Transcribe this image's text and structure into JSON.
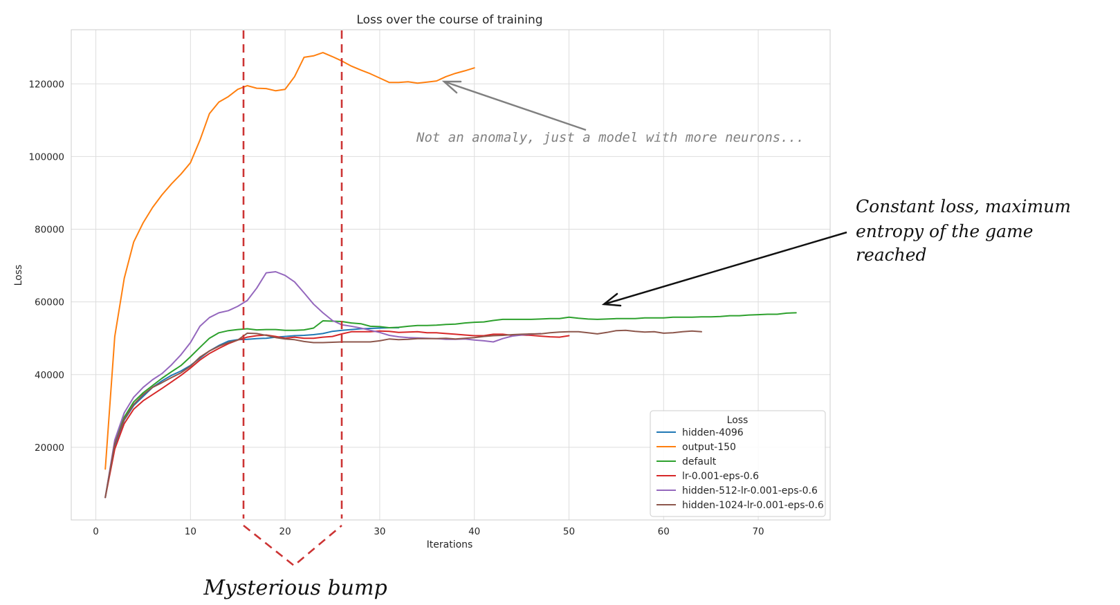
{
  "chart_data": {
    "type": "line",
    "title": "Loss over the course of training",
    "xlabel": "Iterations",
    "ylabel": "Loss",
    "xlim": [
      -2.6,
      77.6
    ],
    "ylim": [
      0,
      134900
    ],
    "xticks": [
      0,
      10,
      20,
      30,
      40,
      50,
      60,
      70
    ],
    "yticks": [
      20000,
      40000,
      60000,
      80000,
      100000,
      120000
    ],
    "grid": true,
    "legend": {
      "title": "Loss",
      "placement": "lower-right"
    },
    "series": [
      {
        "name": "hidden-4096",
        "color": "#1f77b4",
        "x": [
          1,
          2,
          3,
          4,
          5,
          6,
          7,
          8,
          9,
          10,
          11,
          12,
          13,
          14,
          15,
          16,
          17,
          18,
          19,
          20,
          21,
          22,
          23,
          24,
          25,
          26,
          27,
          28,
          29,
          30,
          31,
          32
        ],
        "y": [
          6200,
          20500,
          27500,
          31500,
          34000,
          36500,
          38300,
          39800,
          41000,
          42500,
          44500,
          46500,
          48000,
          49200,
          49600,
          49700,
          49900,
          50000,
          50300,
          50500,
          50700,
          50800,
          51000,
          51300,
          51900,
          52200,
          52400,
          52600,
          52700,
          52800,
          52900,
          52900
        ]
      },
      {
        "name": "output-150",
        "color": "#ff7f0e",
        "x": [
          1,
          2,
          3,
          4,
          5,
          6,
          7,
          8,
          9,
          10,
          11,
          12,
          13,
          14,
          15,
          16,
          17,
          18,
          19,
          20,
          21,
          22,
          23,
          24,
          25,
          26,
          27,
          28,
          29,
          30,
          31,
          32,
          33,
          34,
          35,
          36,
          37,
          38,
          39,
          40
        ],
        "y": [
          14000,
          50500,
          66500,
          76500,
          81800,
          86000,
          89500,
          92500,
          95200,
          98300,
          104500,
          111800,
          115000,
          116500,
          118500,
          119500,
          118800,
          118700,
          118100,
          118500,
          122000,
          127300,
          127700,
          128600,
          127500,
          126300,
          124900,
          123800,
          122800,
          121600,
          120400,
          120400,
          120600,
          120200,
          120500,
          120800,
          122000,
          122900,
          123600,
          124400
        ]
      },
      {
        "name": "default",
        "color": "#2ca02c",
        "x": [
          1,
          2,
          3,
          4,
          5,
          6,
          7,
          8,
          9,
          10,
          11,
          12,
          13,
          14,
          15,
          16,
          17,
          18,
          19,
          20,
          21,
          22,
          23,
          24,
          25,
          26,
          27,
          28,
          29,
          30,
          31,
          32,
          33,
          34,
          35,
          36,
          37,
          38,
          39,
          40,
          41,
          42,
          43,
          44,
          45,
          46,
          47,
          48,
          49,
          50,
          51,
          52,
          53,
          54,
          55,
          56,
          57,
          58,
          59,
          60,
          61,
          62,
          63,
          64,
          65,
          66,
          67,
          68,
          69,
          70,
          71,
          72,
          73,
          74
        ],
        "y": [
          6200,
          21500,
          28300,
          32500,
          35000,
          37000,
          39000,
          40800,
          42500,
          44900,
          47500,
          50000,
          51500,
          52100,
          52400,
          52600,
          52300,
          52400,
          52400,
          52200,
          52200,
          52300,
          52800,
          54800,
          54700,
          54600,
          54200,
          54000,
          53300,
          53200,
          52900,
          53000,
          53300,
          53500,
          53500,
          53600,
          53800,
          53900,
          54200,
          54400,
          54500,
          54900,
          55200,
          55200,
          55200,
          55200,
          55300,
          55400,
          55400,
          55800,
          55500,
          55300,
          55200,
          55300,
          55400,
          55400,
          55400,
          55600,
          55600,
          55600,
          55800,
          55800,
          55800,
          55900,
          55900,
          56000,
          56200,
          56200,
          56400,
          56500,
          56600,
          56600,
          56900,
          57000
        ]
      },
      {
        "name": "lr-0.001-eps-0.6",
        "color": "#d62728",
        "x": [
          1,
          2,
          3,
          4,
          5,
          6,
          7,
          8,
          9,
          10,
          11,
          12,
          13,
          14,
          15,
          16,
          17,
          18,
          19,
          20,
          21,
          22,
          23,
          24,
          25,
          26,
          27,
          28,
          29,
          30,
          31,
          32,
          33,
          34,
          35,
          36,
          37,
          38,
          39,
          40,
          41,
          42,
          43,
          44,
          45,
          46,
          47,
          48,
          49,
          50
        ],
        "y": [
          6200,
          19500,
          26500,
          30500,
          32800,
          34500,
          36200,
          38000,
          39800,
          41800,
          44000,
          45800,
          47200,
          48500,
          49500,
          50300,
          50700,
          50900,
          50500,
          50000,
          50300,
          50000,
          50000,
          50300,
          50500,
          51200,
          51800,
          51800,
          51800,
          52000,
          51900,
          51600,
          51700,
          51800,
          51500,
          51500,
          51300,
          51100,
          50900,
          50700,
          50700,
          51100,
          51100,
          50800,
          50900,
          50800,
          50600,
          50400,
          50300,
          50700
        ]
      },
      {
        "name": "hidden-512-lr-0.001-eps-0.6",
        "color": "#9467bd",
        "x": [
          1,
          2,
          3,
          4,
          5,
          6,
          7,
          8,
          9,
          10,
          11,
          12,
          13,
          14,
          15,
          16,
          17,
          18,
          19,
          20,
          21,
          22,
          23,
          24,
          25,
          26,
          27,
          28,
          29,
          30,
          31,
          32,
          33,
          34,
          35,
          36,
          37,
          38,
          39,
          40,
          41,
          42,
          43,
          44,
          45,
          46,
          47
        ],
        "y": [
          6200,
          22000,
          29500,
          33800,
          36500,
          38600,
          40300,
          42700,
          45500,
          48800,
          53300,
          55700,
          57000,
          57600,
          58800,
          60400,
          63800,
          68000,
          68300,
          67300,
          65500,
          62500,
          59400,
          57000,
          54900,
          53700,
          53300,
          52800,
          52200,
          51600,
          50800,
          50400,
          50200,
          50100,
          50000,
          49900,
          49700,
          49700,
          49800,
          49500,
          49300,
          49000,
          49900,
          50600,
          50900,
          51100,
          51300
        ]
      },
      {
        "name": "hidden-1024-lr-0.001-eps-0.6",
        "color": "#8c564b",
        "x": [
          1,
          2,
          3,
          4,
          5,
          6,
          7,
          8,
          9,
          10,
          11,
          12,
          13,
          14,
          15,
          16,
          17,
          18,
          19,
          20,
          21,
          22,
          23,
          24,
          25,
          26,
          27,
          28,
          29,
          30,
          31,
          32,
          33,
          34,
          35,
          36,
          37,
          38,
          39,
          40,
          41,
          42,
          43,
          44,
          45,
          46,
          47,
          48,
          49,
          50,
          51,
          52,
          53,
          54,
          55,
          56,
          57,
          58,
          59,
          60,
          61,
          62,
          63,
          64
        ],
        "y": [
          6200,
          21000,
          27700,
          31800,
          34500,
          36500,
          37800,
          39200,
          40500,
          42300,
          44800,
          46500,
          47800,
          48800,
          49500,
          51400,
          51300,
          50800,
          50200,
          49800,
          49600,
          49100,
          48800,
          48800,
          48900,
          49000,
          49000,
          49000,
          49000,
          49300,
          49800,
          49600,
          49700,
          49900,
          49900,
          49900,
          50000,
          49800,
          50000,
          50200,
          50500,
          50700,
          50800,
          51000,
          51100,
          51200,
          51200,
          51500,
          51700,
          51800,
          51800,
          51500,
          51200,
          51600,
          52100,
          52200,
          51900,
          51700,
          51800,
          51400,
          51500,
          51800,
          52000,
          51800
        ]
      }
    ],
    "annotations": {
      "gray_note": "Not an anomaly, just a model with more neurons...",
      "constant_note_lines": [
        "Constant loss, maximum",
        "entropy of the game",
        "reached"
      ],
      "bump_note": "Mysterious bump"
    }
  }
}
